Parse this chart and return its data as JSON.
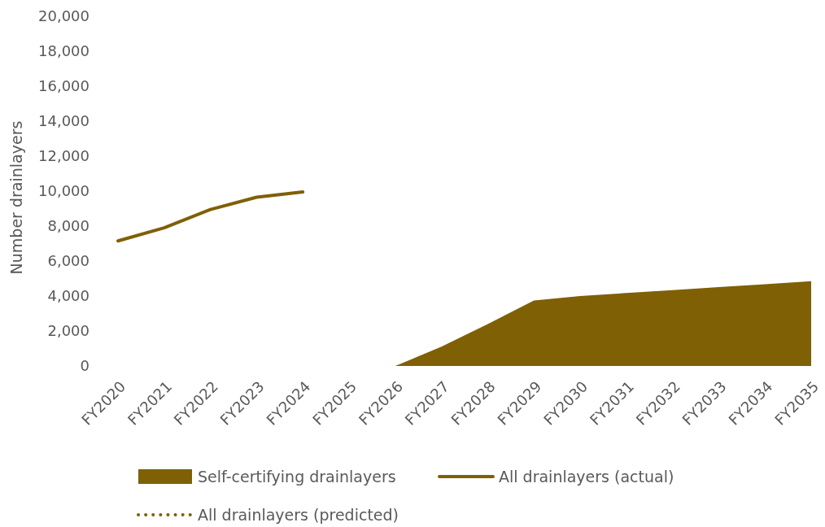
{
  "chart_data": {
    "type": "line",
    "ylabel": "Number drainlayers",
    "categories": [
      "FY2020",
      "FY2021",
      "FY2022",
      "FY2023",
      "FY2024",
      "FY2025",
      "FY2026",
      "FY2027",
      "FY2028",
      "FY2029",
      "FY2030",
      "FY2031",
      "FY2032",
      "FY2033",
      "FY2034",
      "FY2035"
    ],
    "series": [
      {
        "name": "Self-certifying drainlayers",
        "type": "area",
        "color": "#7f6005",
        "values": [
          null,
          null,
          null,
          null,
          null,
          null,
          0,
          1100,
          2400,
          3750,
          4000,
          4170,
          4340,
          4510,
          4680,
          4850
        ]
      },
      {
        "name": "All drainlayers (actual)",
        "type": "line",
        "color": "#7f6005",
        "values": [
          7150,
          7900,
          8950,
          9650,
          9950,
          null,
          null,
          null,
          null,
          null,
          null,
          null,
          null,
          null,
          null,
          null
        ]
      },
      {
        "name": "All drainlayers (predicted)",
        "line_style": "dotted",
        "color": "#7f6005",
        "values": [
          null,
          null,
          null,
          null,
          null,
          null,
          null,
          null,
          null,
          null,
          null,
          null,
          null,
          null,
          null,
          null
        ]
      }
    ],
    "ylim": [
      0,
      20000
    ],
    "yticks": [
      {
        "value": 0,
        "label": "0"
      },
      {
        "value": 2000,
        "label": "2,000"
      },
      {
        "value": 4000,
        "label": "4,000"
      },
      {
        "value": 6000,
        "label": "6,000"
      },
      {
        "value": 8000,
        "label": "8,000"
      },
      {
        "value": 10000,
        "label": "10,000"
      },
      {
        "value": 12000,
        "label": "12,000"
      },
      {
        "value": 14000,
        "label": "14,000"
      },
      {
        "value": 16000,
        "label": "16,000"
      },
      {
        "value": 18000,
        "label": "18,000"
      },
      {
        "value": 20000,
        "label": "20,000"
      }
    ],
    "legend": "bottom"
  }
}
